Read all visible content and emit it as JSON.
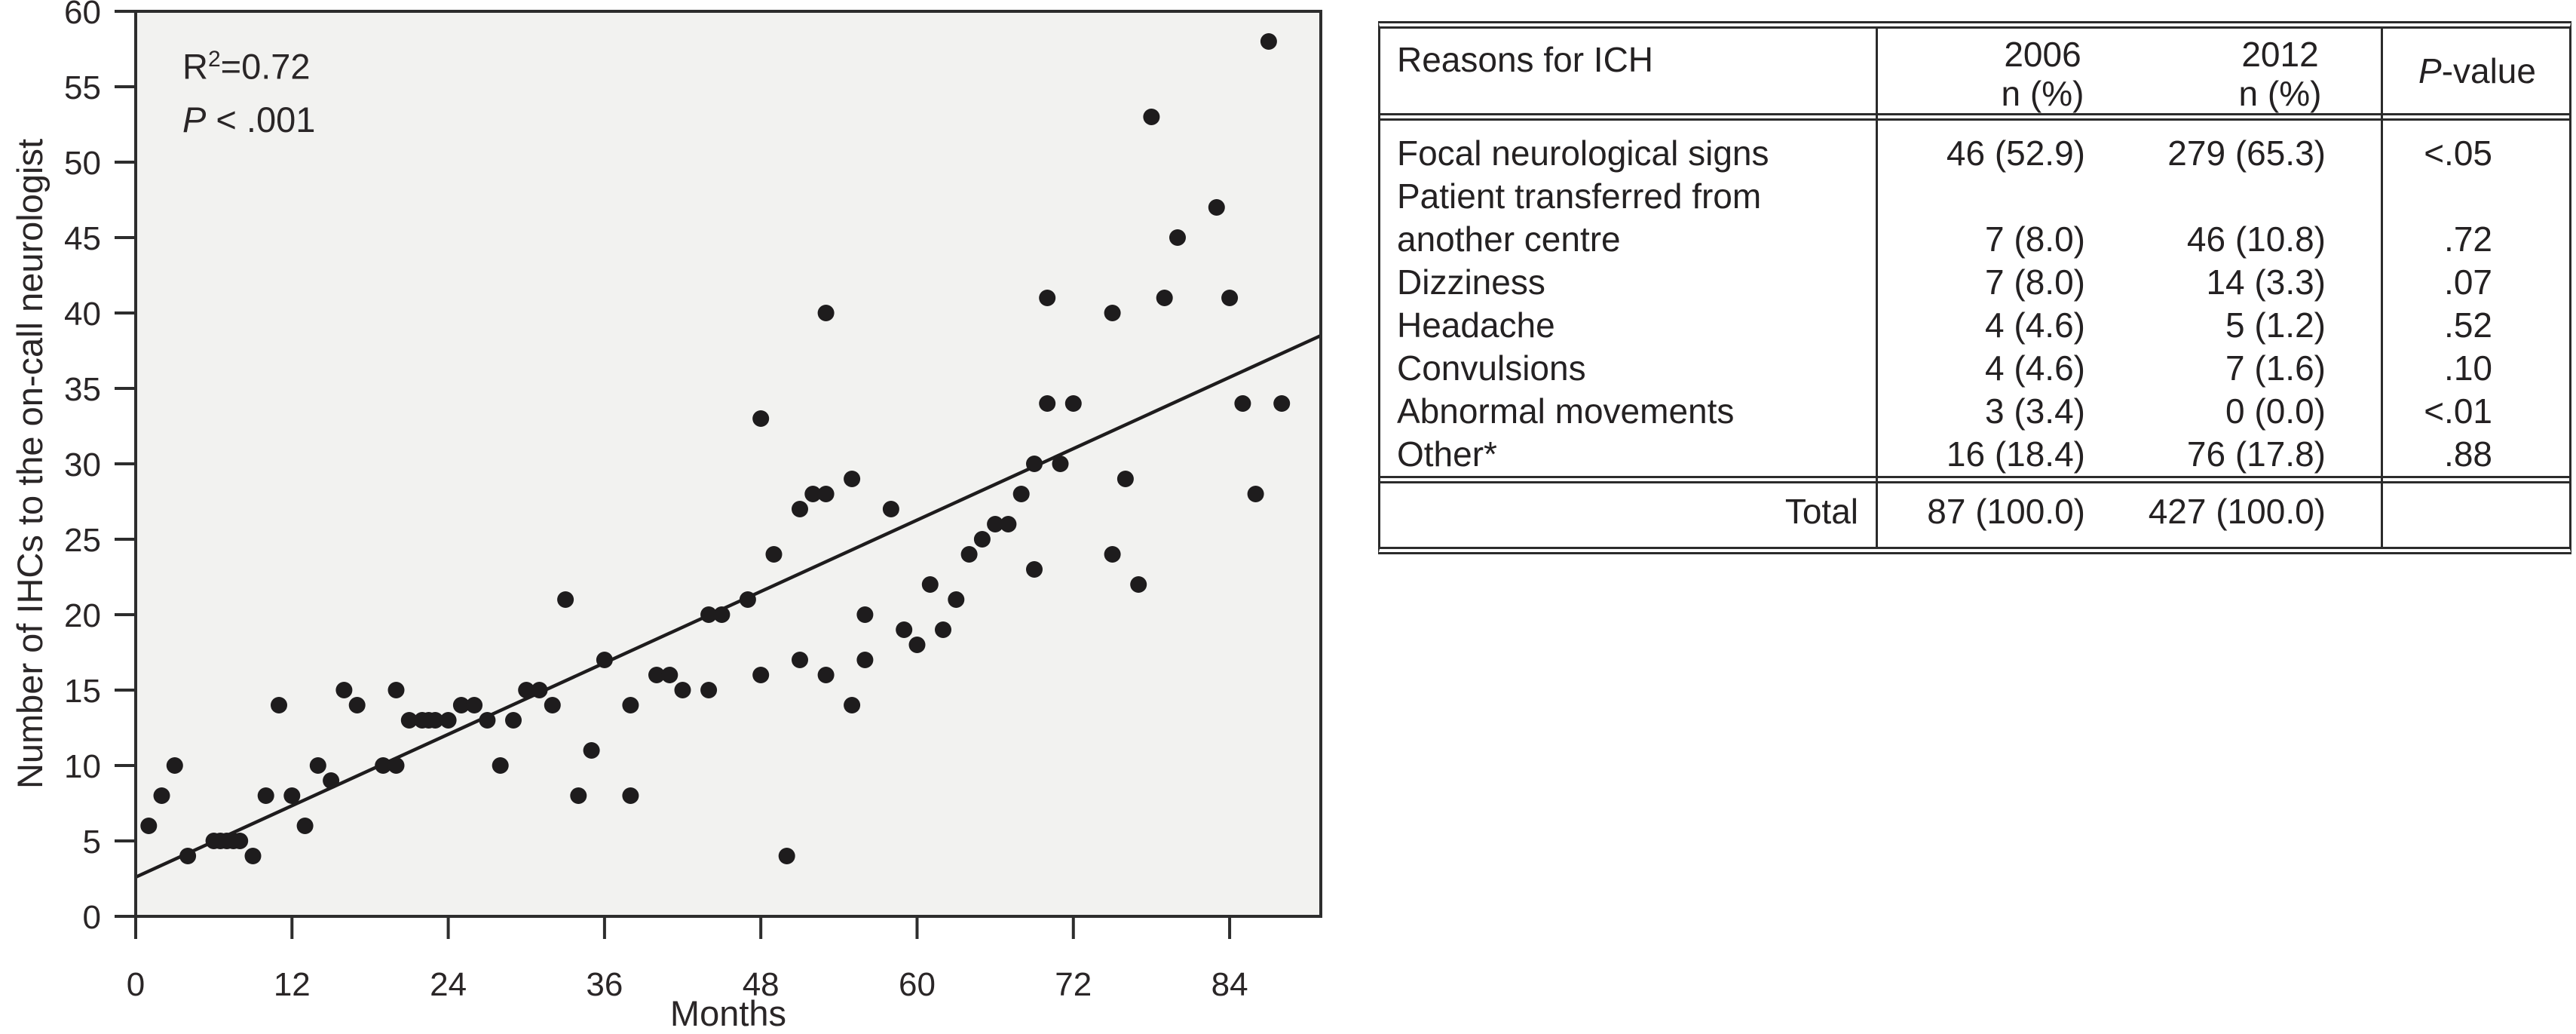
{
  "chart": {
    "ylabel": "Number of IHCs to the on-call neurologist",
    "xlabel": "Months",
    "annotation": {
      "r_base": "R",
      "r_sup": "2",
      "r_eq": "=0.72",
      "p_label": "P",
      "p_rest": " < .001"
    }
  },
  "chart_data": {
    "type": "scatter",
    "title": "",
    "xlabel": "Months",
    "ylabel": "Number of IHCs to the on-call neurologist",
    "xlim": [
      0,
      91
    ],
    "ylim": [
      0,
      60
    ],
    "x_ticks": [
      0,
      12,
      24,
      36,
      48,
      60,
      72,
      84
    ],
    "y_ticks": [
      0,
      5,
      10,
      15,
      20,
      25,
      30,
      35,
      40,
      45,
      50,
      55,
      60
    ],
    "grid": false,
    "legend": "none",
    "r_squared": 0.72,
    "p_value": "<.001",
    "annotation_text": "R²=0.72, P < .001",
    "trend_line": {
      "x": [
        0,
        91
      ],
      "y": [
        2.6,
        38.5
      ]
    },
    "points": [
      [
        1,
        6
      ],
      [
        2,
        8
      ],
      [
        3,
        10
      ],
      [
        4,
        4
      ],
      [
        6,
        5
      ],
      [
        6.5,
        5
      ],
      [
        7,
        5
      ],
      [
        7.5,
        5
      ],
      [
        8,
        5
      ],
      [
        9,
        4
      ],
      [
        10,
        8
      ],
      [
        11,
        14
      ],
      [
        12,
        8
      ],
      [
        13,
        6
      ],
      [
        14,
        10
      ],
      [
        15,
        9
      ],
      [
        16,
        15
      ],
      [
        17,
        14
      ],
      [
        19,
        10
      ],
      [
        20,
        10
      ],
      [
        20,
        15
      ],
      [
        21,
        13
      ],
      [
        22,
        13
      ],
      [
        22.5,
        13
      ],
      [
        23,
        13
      ],
      [
        24,
        13
      ],
      [
        25,
        14
      ],
      [
        26,
        14
      ],
      [
        27,
        13
      ],
      [
        28,
        10
      ],
      [
        29,
        13
      ],
      [
        30,
        15
      ],
      [
        31,
        15
      ],
      [
        32,
        14
      ],
      [
        33,
        21
      ],
      [
        34,
        8
      ],
      [
        35,
        11
      ],
      [
        36,
        17
      ],
      [
        38,
        14
      ],
      [
        38,
        8
      ],
      [
        40,
        16
      ],
      [
        41,
        16
      ],
      [
        42,
        15
      ],
      [
        44,
        15
      ],
      [
        44,
        20
      ],
      [
        45,
        20
      ],
      [
        47,
        21
      ],
      [
        48,
        16
      ],
      [
        48,
        33
      ],
      [
        49,
        24
      ],
      [
        50,
        4
      ],
      [
        51,
        17
      ],
      [
        51,
        27
      ],
      [
        52,
        28
      ],
      [
        53,
        28
      ],
      [
        53,
        40
      ],
      [
        53,
        16
      ],
      [
        55,
        29
      ],
      [
        55,
        14
      ],
      [
        56,
        20
      ],
      [
        56,
        17
      ],
      [
        58,
        27
      ],
      [
        59,
        19
      ],
      [
        60,
        18
      ],
      [
        61,
        22
      ],
      [
        62,
        19
      ],
      [
        63,
        21
      ],
      [
        64,
        24
      ],
      [
        65,
        25
      ],
      [
        66,
        26
      ],
      [
        67,
        26
      ],
      [
        68,
        28
      ],
      [
        69,
        30
      ],
      [
        71,
        30
      ],
      [
        70,
        34
      ],
      [
        72,
        34
      ],
      [
        69,
        23
      ],
      [
        75,
        40
      ],
      [
        70,
        41
      ],
      [
        75,
        24
      ],
      [
        77,
        22
      ],
      [
        76,
        29
      ],
      [
        78,
        53
      ],
      [
        80,
        45
      ],
      [
        83,
        47
      ],
      [
        79,
        41
      ],
      [
        84,
        41
      ],
      [
        85,
        34
      ],
      [
        88,
        34
      ],
      [
        86,
        28
      ],
      [
        87,
        58
      ]
    ]
  },
  "table": {
    "header": {
      "reasons": "Reasons for ICH",
      "y2006_line1": "2006",
      "y2006_line2": "n (%)",
      "y2012_line1": "2012",
      "y2012_line2": "n (%)",
      "p_italic": "P",
      "p_rest": "-value"
    },
    "rows": [
      {
        "reason": "Focal neurological signs",
        "y2006": "46 (52.9)",
        "y2012": "279 (65.3)",
        "p": "<.05"
      },
      {
        "reason": "Patient transferred from",
        "y2006": "",
        "y2012": "",
        "p": ""
      },
      {
        "reason": "another centre",
        "y2006": "7 (8.0)",
        "y2012": "46 (10.8)",
        "p": ".72"
      },
      {
        "reason": "Dizziness",
        "y2006": "7 (8.0)",
        "y2012": "14 (3.3)",
        "p": ".07"
      },
      {
        "reason": "Headache",
        "y2006": "4 (4.6)",
        "y2012": "5 (1.2)",
        "p": ".52"
      },
      {
        "reason": "Convulsions",
        "y2006": "4 (4.6)",
        "y2012": "7 (1.6)",
        "p": ".10"
      },
      {
        "reason": "Abnormal movements",
        "y2006": "3 (3.4)",
        "y2012": "0 (0.0)",
        "p": "<.01"
      },
      {
        "reason": "Other*",
        "y2006": "16 (18.4)",
        "y2012": "76 (17.8)",
        "p": ".88"
      }
    ],
    "total": {
      "label": "Total",
      "y2006": "87 (100.0)",
      "y2012": "427 (100.0)",
      "p": ""
    }
  },
  "colors": {
    "plot_background": "#f2f2f0",
    "frame": "#2d2d2d",
    "point": "#1e1c1d",
    "trend_line": "#1e1c1d",
    "text": "#2a2627",
    "table_border": "#2b2b2b"
  }
}
